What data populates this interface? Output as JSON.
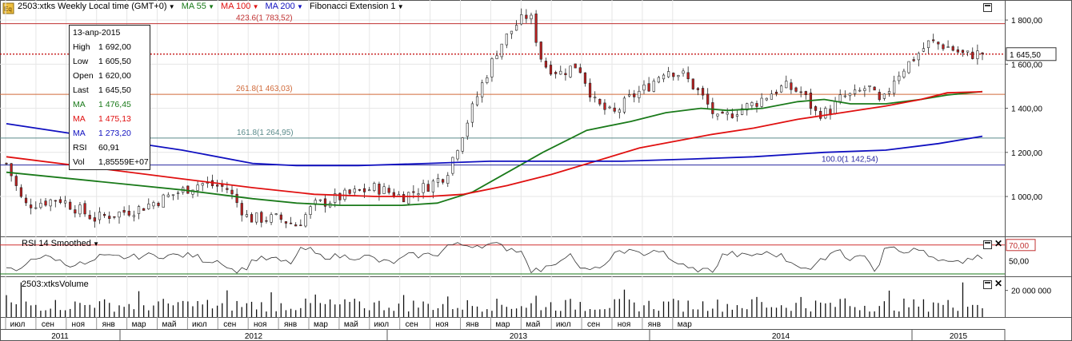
{
  "header": {
    "symbol_badge": "Eq",
    "title": "2503:xtks Weekly Local time (GMT+0)",
    "indicators": [
      {
        "label": "MA 55",
        "color": "#1a7a1a"
      },
      {
        "label": "MA 100",
        "color": "#e01010"
      },
      {
        "label": "MA 200",
        "color": "#1010c0"
      },
      {
        "label": "Fibonacci Extension 1",
        "color": "#000000"
      }
    ]
  },
  "tooltip": {
    "date": "13-апр-2015",
    "rows": [
      {
        "label": "High",
        "value": "1 692,00",
        "color": "#000000"
      },
      {
        "label": "Low",
        "value": "1 605,50",
        "color": "#000000"
      },
      {
        "label": "Open",
        "value": "1 620,00",
        "color": "#000000"
      },
      {
        "label": "Last",
        "value": "1 645,50",
        "color": "#000000"
      },
      {
        "label": "MA",
        "value": "1 476,45",
        "color": "#1a7a1a"
      },
      {
        "label": "MA",
        "value": "1 475,13",
        "color": "#e01010"
      },
      {
        "label": "MA",
        "value": "1 273,20",
        "color": "#1010c0"
      },
      {
        "label": "RSI",
        "value": "60,91",
        "color": "#000000"
      },
      {
        "label": "Vol",
        "value": "1,85559E+07",
        "color": "#000000"
      }
    ]
  },
  "chart_data": [
    {
      "type": "candlestick",
      "title": "2503:xtks Weekly",
      "y_ticks": [
        "1 800,00",
        "1 600,00",
        "1 400,00",
        "1 200,00",
        "1 000,00"
      ],
      "y_tick_values": [
        1800,
        1600,
        1400,
        1200,
        1000
      ],
      "ylim": [
        830,
        1880
      ],
      "last_price_label": "1 645,50",
      "last_price": 1645.5,
      "fib_levels": [
        {
          "label": "423.6(1 783,52)",
          "value": 1783.52,
          "color": "#c03030"
        },
        {
          "label": "261.8(1 463,03)",
          "value": 1463.03,
          "color": "#d06a3a"
        },
        {
          "label": "161.8(1 264,95)",
          "value": 1264.95,
          "color": "#5a8a8a"
        },
        {
          "label": "100.0(1 142,54)",
          "value": 1142.54,
          "color": "#2a2aa0"
        }
      ],
      "x_labels": [
        "июл",
        "сен",
        "ноя",
        "янв",
        "мар",
        "май",
        "июл",
        "сен",
        "ноя",
        "янв",
        "мар",
        "май",
        "июл",
        "сен",
        "ноя",
        "янв",
        "мар",
        "май",
        "июл",
        "сен",
        "ноя",
        "янв",
        "мар"
      ],
      "x_years": [
        "2011",
        "2012",
        "2013",
        "2014",
        "2015"
      ],
      "series": [
        {
          "name": "MA 55",
          "color": "#1a7a1a"
        },
        {
          "name": "MA 100",
          "color": "#e01010"
        },
        {
          "name": "MA 200",
          "color": "#1010c0"
        }
      ]
    },
    {
      "type": "line",
      "title": "RSI 14 Smoothed",
      "y_ticks": [
        "70,00",
        "50,00"
      ],
      "overbought": 70,
      "ylim": [
        30,
        80
      ]
    },
    {
      "type": "bar",
      "title": "2503:xtksVolume",
      "y_ticks": [
        "20 000 000"
      ],
      "ylim": [
        0,
        30000000
      ]
    }
  ]
}
